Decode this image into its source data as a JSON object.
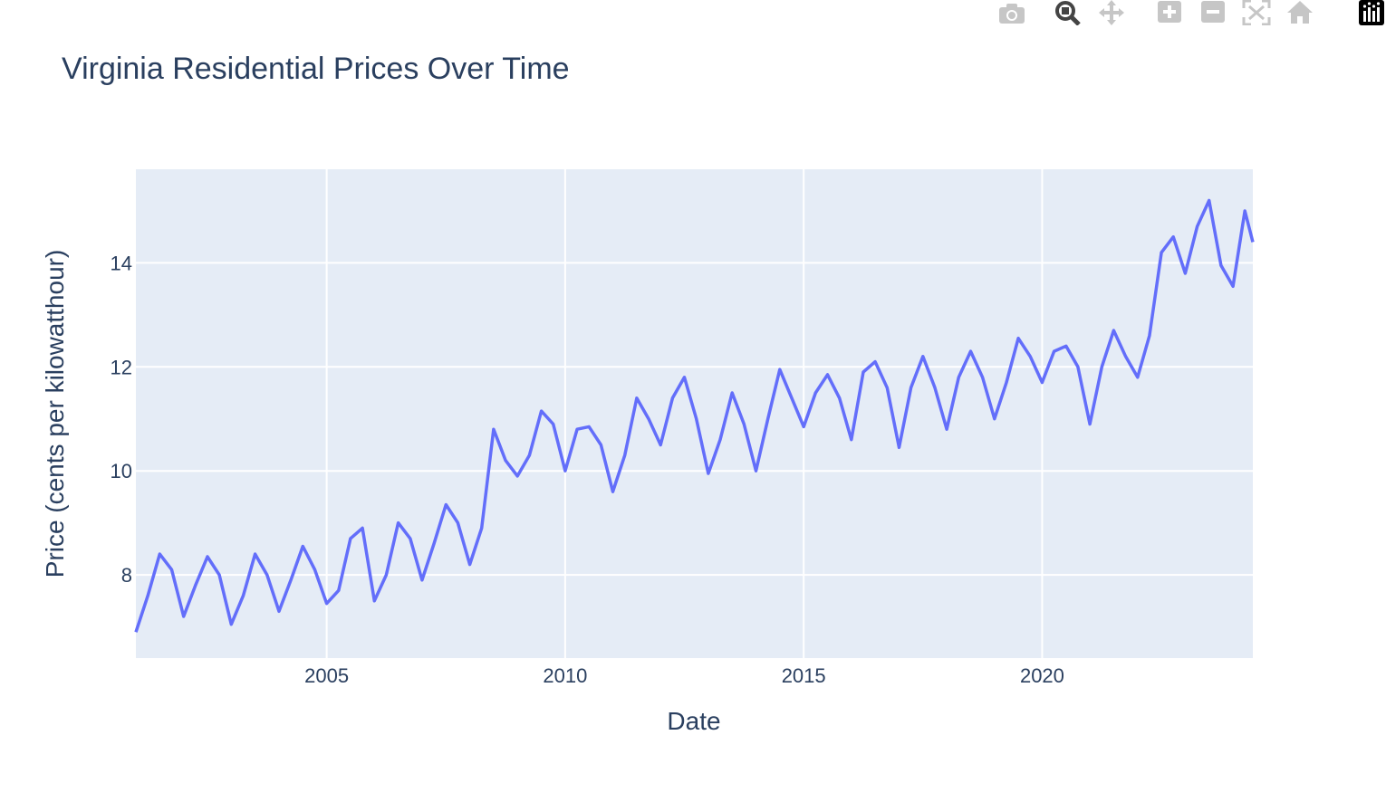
{
  "modebar": {
    "buttons": [
      {
        "name": "camera-icon"
      },
      {
        "name": "zoom-icon"
      },
      {
        "name": "pan-icon"
      },
      {
        "name": "zoom-in-icon"
      },
      {
        "name": "zoom-out-icon"
      },
      {
        "name": "autoscale-icon"
      },
      {
        "name": "reset-axes-icon"
      },
      {
        "name": "plotly-logo-icon"
      }
    ]
  },
  "colors": {
    "plot_bg": "#e5ecf6",
    "grid": "#ffffff",
    "line": "#636efa",
    "text": "#2a3f5f",
    "modebar_icon": "#c6c6c6"
  },
  "chart_data": {
    "type": "line",
    "title": "Virginia Residential Prices Over Time",
    "xlabel": "Date",
    "ylabel": "Price (cents per kilowatthour)",
    "xlim": [
      "2001-01",
      "2024-06"
    ],
    "ylim": [
      6.4,
      15.8
    ],
    "xticks": [
      "2005",
      "2010",
      "2015",
      "2020"
    ],
    "yticks": [
      8,
      10,
      12,
      14
    ],
    "grid": true,
    "series": [
      {
        "name": "",
        "x": [
          "2001-01",
          "2001-04",
          "2001-07",
          "2001-10",
          "2002-01",
          "2002-04",
          "2002-07",
          "2002-10",
          "2003-01",
          "2003-04",
          "2003-07",
          "2003-10",
          "2004-01",
          "2004-04",
          "2004-07",
          "2004-10",
          "2005-01",
          "2005-04",
          "2005-07",
          "2005-10",
          "2006-01",
          "2006-04",
          "2006-07",
          "2006-10",
          "2007-01",
          "2007-04",
          "2007-07",
          "2007-10",
          "2008-01",
          "2008-04",
          "2008-07",
          "2008-10",
          "2009-01",
          "2009-04",
          "2009-07",
          "2009-10",
          "2010-01",
          "2010-04",
          "2010-07",
          "2010-10",
          "2011-01",
          "2011-04",
          "2011-07",
          "2011-10",
          "2012-01",
          "2012-04",
          "2012-07",
          "2012-10",
          "2013-01",
          "2013-04",
          "2013-07",
          "2013-10",
          "2014-01",
          "2014-04",
          "2014-07",
          "2014-10",
          "2015-01",
          "2015-04",
          "2015-07",
          "2015-10",
          "2016-01",
          "2016-04",
          "2016-07",
          "2016-10",
          "2017-01",
          "2017-04",
          "2017-07",
          "2017-10",
          "2018-01",
          "2018-04",
          "2018-07",
          "2018-10",
          "2019-01",
          "2019-04",
          "2019-07",
          "2019-10",
          "2020-01",
          "2020-04",
          "2020-07",
          "2020-10",
          "2021-01",
          "2021-04",
          "2021-07",
          "2021-10",
          "2022-01",
          "2022-04",
          "2022-07",
          "2022-10",
          "2023-01",
          "2023-04",
          "2023-07",
          "2023-10",
          "2024-01",
          "2024-04",
          "2024-06"
        ],
        "y": [
          6.9,
          7.6,
          8.4,
          8.1,
          7.2,
          7.8,
          8.35,
          8.0,
          7.05,
          7.6,
          8.4,
          8.0,
          7.3,
          7.9,
          8.55,
          8.1,
          7.45,
          7.7,
          8.7,
          8.9,
          7.5,
          8.0,
          9.0,
          8.7,
          7.9,
          8.6,
          9.35,
          9.0,
          8.2,
          8.9,
          10.8,
          10.2,
          9.9,
          10.3,
          11.15,
          10.9,
          10.0,
          10.8,
          10.85,
          10.5,
          9.6,
          10.3,
          11.4,
          11.0,
          10.5,
          11.4,
          11.8,
          11.0,
          9.95,
          10.6,
          11.5,
          10.9,
          10.0,
          11.0,
          11.95,
          11.4,
          10.85,
          11.5,
          11.85,
          11.4,
          10.6,
          11.9,
          12.1,
          11.6,
          10.45,
          11.6,
          12.2,
          11.6,
          10.8,
          11.8,
          12.3,
          11.8,
          11.0,
          11.7,
          12.55,
          12.2,
          11.7,
          12.3,
          12.4,
          12.0,
          10.9,
          12.0,
          12.7,
          12.2,
          11.8,
          12.6,
          14.2,
          14.5,
          13.8,
          14.7,
          15.2,
          13.95,
          13.55,
          15.0,
          14.4
        ]
      }
    ]
  }
}
